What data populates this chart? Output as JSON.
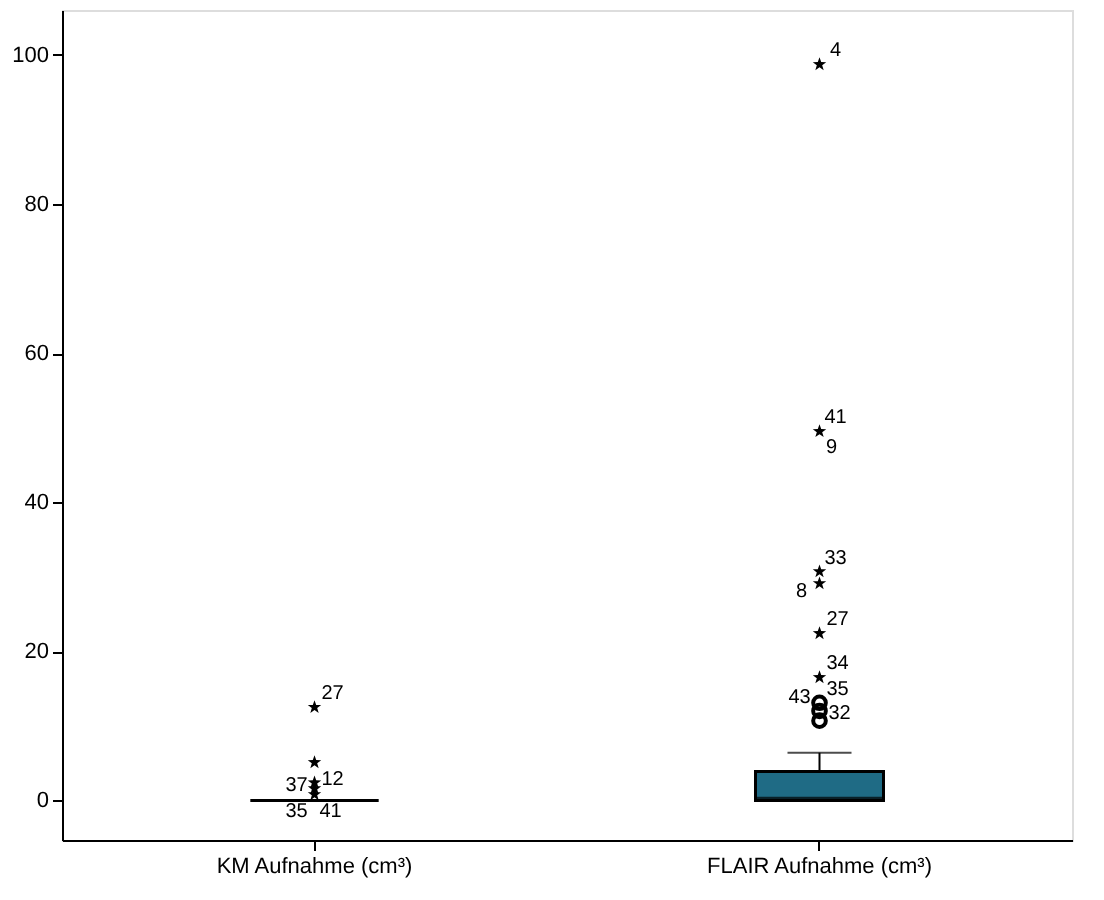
{
  "chart_data": {
    "type": "box",
    "categories": [
      "KM Aufnahme (cm³)",
      "FLAIR Aufnahme (cm³)"
    ],
    "colors": [
      "#000000",
      "#1f6b85"
    ],
    "boxes": [
      {
        "low": 0,
        "q1": 0,
        "median": 0,
        "q3": 0,
        "high": 0
      },
      {
        "low": 0,
        "q1": 0,
        "median": 0.3,
        "q3": 3.9,
        "high": 6.4
      }
    ],
    "series": [
      {
        "type": "scatter",
        "marker": "star",
        "color": "#000000",
        "x": [
          "KM Aufnahme (cm³)",
          "KM Aufnahme (cm³)",
          "KM Aufnahme (cm³)",
          "KM Aufnahme (cm³)",
          "KM Aufnahme (cm³)",
          "FLAIR Aufnahme (cm³)",
          "FLAIR Aufnahme (cm³)",
          "FLAIR Aufnahme (cm³)",
          "FLAIR Aufnahme (cm³)",
          "FLAIR Aufnahme (cm³)",
          "FLAIR Aufnahme (cm³)"
        ],
        "values": [
          12.5,
          5.1,
          2.4,
          1.6,
          0.8,
          16.5,
          22.4,
          29.1,
          30.7,
          49.5,
          98.7
        ]
      },
      {
        "type": "scatter",
        "marker": "circle",
        "color": "#000000",
        "x": [
          "FLAIR Aufnahme (cm³)",
          "FLAIR Aufnahme (cm³)",
          "FLAIR Aufnahme (cm³)"
        ],
        "values": [
          10.7,
          12.0,
          13.1
        ]
      }
    ],
    "annotations": [
      {
        "text": "27",
        "x": "KM Aufnahme (cm³)",
        "y": 12.5
      },
      {
        "text": "12",
        "x": "KM Aufnahme (cm³)",
        "y": 2.4
      },
      {
        "text": "37",
        "x": "KM Aufnahme (cm³)",
        "y": 1.6
      },
      {
        "text": "35",
        "x": "KM Aufnahme (cm³)",
        "y": 0.8
      },
      {
        "text": "41",
        "x": "KM Aufnahme (cm³)",
        "y": 0.8
      },
      {
        "text": "4",
        "x": "FLAIR Aufnahme (cm³)",
        "y": 98.7
      },
      {
        "text": "41",
        "x": "FLAIR Aufnahme (cm³)",
        "y": 49.5
      },
      {
        "text": "9",
        "x": "FLAIR Aufnahme (cm³)",
        "y": 49.5
      },
      {
        "text": "33",
        "x": "FLAIR Aufnahme (cm³)",
        "y": 30.7
      },
      {
        "text": "8",
        "x": "FLAIR Aufnahme (cm³)",
        "y": 29.1
      },
      {
        "text": "27",
        "x": "FLAIR Aufnahme (cm³)",
        "y": 22.4
      },
      {
        "text": "34",
        "x": "FLAIR Aufnahme (cm³)",
        "y": 16.5
      },
      {
        "text": "35",
        "x": "FLAIR Aufnahme (cm³)",
        "y": 16.5
      },
      {
        "text": "43",
        "x": "FLAIR Aufnahme (cm³)",
        "y": 13.1
      },
      {
        "text": "32",
        "x": "FLAIR Aufnahme (cm³)",
        "y": 10.7
      }
    ],
    "ylim": [
      -5.3,
      106
    ],
    "yticks": [
      0,
      20,
      40,
      60,
      80,
      100
    ],
    "grid": false
  }
}
